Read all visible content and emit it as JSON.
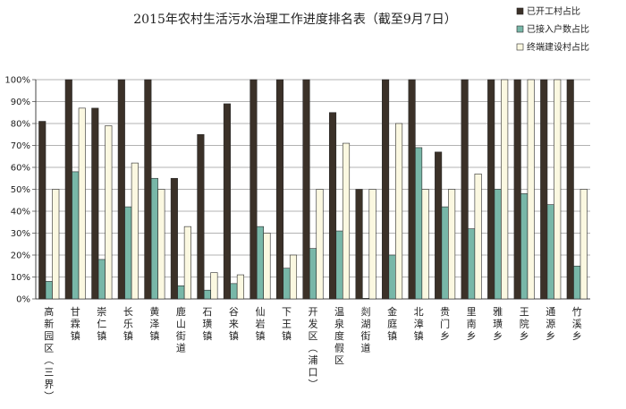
{
  "chart_data": {
    "type": "bar",
    "title": "2015年农村生活污水治理工作进度排名表（截至9月7日）",
    "xlabel": "",
    "ylabel": "",
    "ylim": [
      0,
      100
    ],
    "y_unit": "%",
    "y_ticks": [
      "0%",
      "10%",
      "20%",
      "30%",
      "40%",
      "50%",
      "60%",
      "70%",
      "80%",
      "90%",
      "100%"
    ],
    "grid": true,
    "legend_position": "top-right",
    "categories": [
      "高新园区（三界）",
      "甘霖镇",
      "崇仁镇",
      "长乐镇",
      "黄泽镇",
      "鹿山街道",
      "石璜镇",
      "谷来镇",
      "仙岩镇",
      "下王镇",
      "开发区（浦口）",
      "温泉度假区",
      "剡湖街道",
      "金庭镇",
      "北漳镇",
      "贵门乡",
      "里南乡",
      "雅璜乡",
      "王院乡",
      "通源乡",
      "竹溪乡"
    ],
    "series": [
      {
        "name": "已开工村占比",
        "color": "#3b3128",
        "values": [
          81,
          100,
          87,
          100,
          100,
          55,
          75,
          89,
          100,
          100,
          100,
          85,
          50,
          100,
          100,
          67,
          100,
          100,
          100,
          100,
          100
        ]
      },
      {
        "name": "已接入户数占比",
        "color": "#78b7a8",
        "values": [
          8,
          58,
          18,
          42,
          55,
          6,
          4,
          7,
          33,
          14,
          23,
          31,
          0,
          20,
          69,
          42,
          32,
          50,
          48,
          43,
          15
        ]
      },
      {
        "name": "终端建设村占比",
        "color": "#fbf8e1",
        "values": [
          50,
          87,
          79,
          62,
          50,
          33,
          12,
          11,
          30,
          20,
          50,
          71,
          50,
          80,
          50,
          50,
          57,
          100,
          100,
          100,
          50
        ]
      }
    ]
  }
}
